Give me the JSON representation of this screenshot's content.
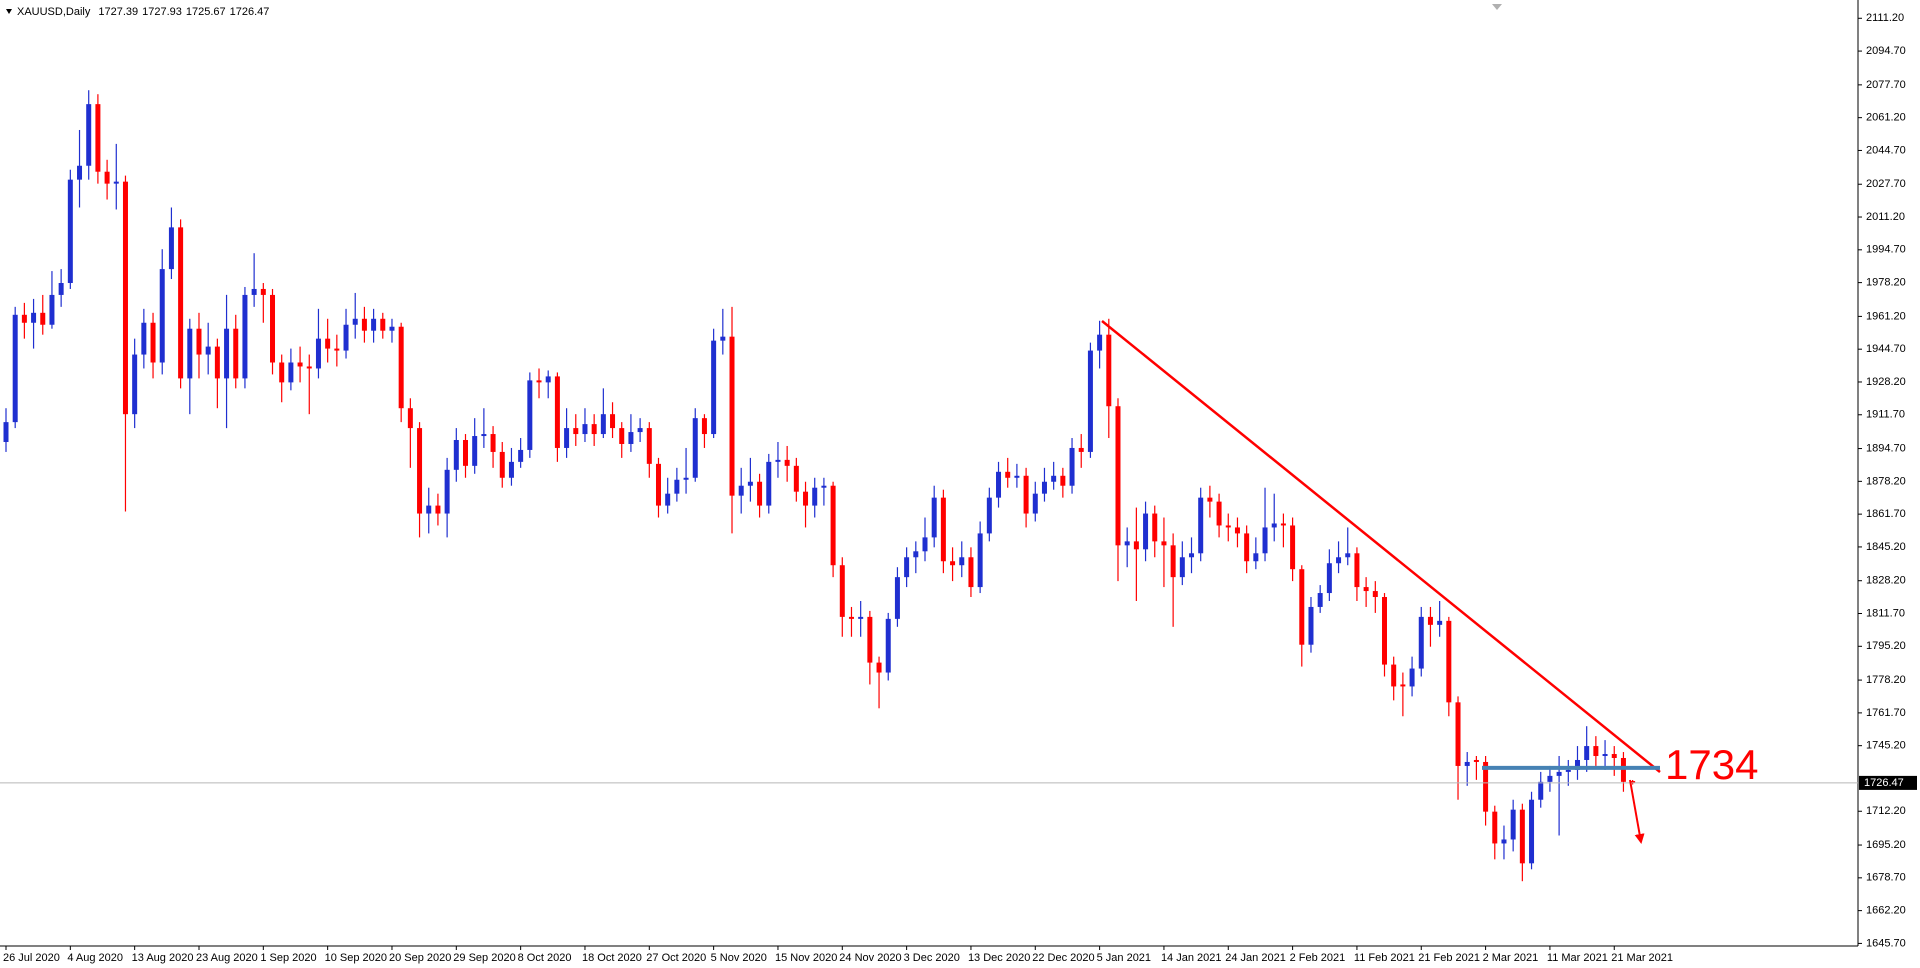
{
  "chart_data": {
    "type": "candlestick",
    "title": "XAUUSD,Daily",
    "up_color": "#1f2fd0",
    "down_color": "#ff0000",
    "ylim": [
      1644.4,
      2120.4
    ],
    "yticks": [
      {
        "value": 2111.2,
        "label": "2111.20"
      },
      {
        "value": 2094.7,
        "label": "2094.70"
      },
      {
        "value": 2077.7,
        "label": "2077.70"
      },
      {
        "value": 2061.2,
        "label": "2061.20"
      },
      {
        "value": 2044.7,
        "label": "2044.70"
      },
      {
        "value": 2027.7,
        "label": "2027.70"
      },
      {
        "value": 2011.2,
        "label": "2011.20"
      },
      {
        "value": 1994.7,
        "label": "1994.70"
      },
      {
        "value": 1978.2,
        "label": "1978.20"
      },
      {
        "value": 1961.2,
        "label": "1961.20"
      },
      {
        "value": 1944.7,
        "label": "1944.70"
      },
      {
        "value": 1928.2,
        "label": "1928.20"
      },
      {
        "value": 1911.7,
        "label": "1911.70"
      },
      {
        "value": 1894.7,
        "label": "1894.70"
      },
      {
        "value": 1878.2,
        "label": "1878.20"
      },
      {
        "value": 1861.7,
        "label": "1861.70"
      },
      {
        "value": 1845.2,
        "label": "1845.20"
      },
      {
        "value": 1828.2,
        "label": "1828.20"
      },
      {
        "value": 1811.7,
        "label": "1811.70"
      },
      {
        "value": 1795.2,
        "label": "1795.20"
      },
      {
        "value": 1778.2,
        "label": "1778.20"
      },
      {
        "value": 1761.7,
        "label": "1761.70"
      },
      {
        "value": 1745.2,
        "label": "1745.20"
      },
      {
        "value": 1712.2,
        "label": "1712.20"
      },
      {
        "value": 1695.2,
        "label": "1695.20"
      },
      {
        "value": 1678.7,
        "label": "1678.70"
      },
      {
        "value": 1662.2,
        "label": "1662.20"
      },
      {
        "value": 1645.7,
        "label": "1645.70"
      }
    ],
    "level": 1734,
    "level_color": "#4682b4",
    "categories": [
      "26 Jul 2020",
      null,
      null,
      null,
      null,
      null,
      null,
      "4 Aug 2020",
      null,
      null,
      null,
      null,
      null,
      null,
      "13 Aug 2020",
      null,
      null,
      null,
      null,
      null,
      null,
      "23 Aug 2020",
      null,
      null,
      null,
      null,
      null,
      null,
      "1 Sep 2020",
      null,
      null,
      null,
      null,
      null,
      null,
      "10 Sep 2020",
      null,
      null,
      null,
      null,
      null,
      null,
      "20 Sep 2020",
      null,
      null,
      null,
      null,
      null,
      null,
      "29 Sep 2020",
      null,
      null,
      null,
      null,
      null,
      null,
      "8 Oct 2020",
      null,
      null,
      null,
      null,
      null,
      null,
      "18 Oct 2020",
      null,
      null,
      null,
      null,
      null,
      null,
      "27 Oct 2020",
      null,
      null,
      null,
      null,
      null,
      null,
      "5 Nov 2020",
      null,
      null,
      null,
      null,
      null,
      null,
      "15 Nov 2020",
      null,
      null,
      null,
      null,
      null,
      null,
      "24 Nov 2020",
      null,
      null,
      null,
      null,
      null,
      null,
      "3 Dec 2020",
      null,
      null,
      null,
      null,
      null,
      null,
      "13 Dec 2020",
      null,
      null,
      null,
      null,
      null,
      null,
      "22 Dec 2020",
      null,
      null,
      null,
      null,
      null,
      null,
      "5 Jan 2021",
      null,
      null,
      null,
      null,
      null,
      null,
      "14 Jan 2021",
      null,
      null,
      null,
      null,
      null,
      null,
      "24 Jan 2021",
      null,
      null,
      null,
      null,
      null,
      null,
      "2 Feb 2021",
      null,
      null,
      null,
      null,
      null,
      null,
      "11 Feb 2021",
      null,
      null,
      null,
      null,
      null,
      null,
      "21 Feb 2021",
      null,
      null,
      null,
      null,
      null,
      null,
      "2 Mar 2021",
      null,
      null,
      null,
      null,
      null,
      null,
      "11 Mar 2021",
      null,
      null,
      null,
      null,
      null,
      null,
      "21 Mar 2021",
      null,
      null
    ],
    "open": [
      1898,
      1908,
      1962,
      1958,
      1963,
      1957,
      1972,
      1978,
      2030,
      2037,
      2068,
      2034,
      2028,
      2029,
      1912,
      1942,
      1958,
      1938,
      1985,
      2006,
      1930,
      1955,
      1942,
      1946,
      1930,
      1955,
      1930,
      1972,
      1975,
      1972,
      1938,
      1928,
      1938,
      1936,
      1935,
      1950,
      1945,
      1944,
      1957,
      1960,
      1954,
      1960,
      1954,
      1956,
      1915,
      1905,
      1862,
      1866,
      1862,
      1884,
      1899,
      1886,
      1901,
      1902,
      1893,
      1880,
      1888,
      1894,
      1929,
      1928,
      1931,
      1895,
      1905,
      1902,
      1907,
      1902,
      1912,
      1905,
      1897,
      1903,
      1905,
      1887,
      1866,
      1872,
      1879,
      1880,
      1910,
      1902,
      1949,
      1951,
      1871,
      1876,
      1878,
      1866,
      1888,
      1889,
      1886,
      1873,
      1866,
      1875,
      1876,
      1836,
      1810,
      1809,
      1810,
      1787,
      1782,
      1809,
      1830,
      1840,
      1843,
      1850,
      1870,
      1838,
      1836,
      1840,
      1825,
      1852,
      1870,
      1883,
      1880,
      1881,
      1862,
      1872,
      1878,
      1881,
      1876,
      1895,
      1893,
      1944,
      1952,
      1916,
      1846,
      1848,
      1844,
      1862,
      1848,
      1846,
      1830,
      1840,
      1842,
      1870,
      1868,
      1856,
      1855,
      1852,
      1838,
      1842,
      1855,
      1857,
      1856,
      1834,
      1796,
      1815,
      1822,
      1837,
      1840,
      1842,
      1825,
      1823,
      1820,
      1786,
      1776,
      1775,
      1784,
      1810,
      1806,
      1808,
      1767,
      1735,
      1738,
      1737,
      1712,
      1696,
      1698,
      1713,
      1686,
      1718,
      1727,
      1730,
      1732,
      1733,
      1738,
      1745,
      1740,
      1741,
      1739,
      1727.39
    ],
    "high": [
      1915,
      1966,
      1968,
      1970,
      1972,
      1984,
      1985,
      2035,
      2055,
      2075,
      2073,
      2040,
      2048,
      2032,
      1950,
      1965,
      1963,
      1995,
      2016,
      2010,
      1960,
      1963,
      1958,
      1950,
      1972,
      1962,
      1976,
      1993,
      1978,
      1975,
      1942,
      1945,
      1946,
      1942,
      1965,
      1960,
      1952,
      1965,
      1973,
      1966,
      1965,
      1963,
      1960,
      1958,
      1920,
      1908,
      1875,
      1872,
      1890,
      1905,
      1902,
      1910,
      1915,
      1906,
      1898,
      1895,
      1900,
      1933,
      1935,
      1934,
      1933,
      1915,
      1912,
      1915,
      1912,
      1925,
      1918,
      1908,
      1912,
      1910,
      1908,
      1890,
      1880,
      1885,
      1895,
      1915,
      1912,
      1955,
      1965,
      1966,
      1885,
      1890,
      1882,
      1892,
      1898,
      1896,
      1890,
      1878,
      1880,
      1880,
      1878,
      1840,
      1815,
      1818,
      1813,
      1790,
      1812,
      1835,
      1845,
      1848,
      1860,
      1876,
      1874,
      1845,
      1848,
      1845,
      1858,
      1875,
      1888,
      1890,
      1887,
      1885,
      1878,
      1885,
      1888,
      1885,
      1900,
      1902,
      1948,
      1959,
      1960,
      1920,
      1855,
      1865,
      1868,
      1866,
      1860,
      1852,
      1848,
      1850,
      1875,
      1876,
      1872,
      1862,
      1860,
      1856,
      1850,
      1875,
      1872,
      1862,
      1860,
      1836,
      1820,
      1826,
      1844,
      1848,
      1855,
      1845,
      1830,
      1828,
      1822,
      1790,
      1782,
      1790,
      1815,
      1815,
      1818,
      1810,
      1770,
      1742,
      1740,
      1740,
      1715,
      1705,
      1718,
      1716,
      1722,
      1732,
      1735,
      1740,
      1738,
      1745,
      1755,
      1750,
      1748,
      1745,
      1742,
      1727.93
    ],
    "low": [
      1893,
      1905,
      1950,
      1945,
      1952,
      1955,
      1966,
      1975,
      2016,
      2030,
      2028,
      2020,
      2015,
      1863,
      1905,
      1935,
      1930,
      1932,
      1980,
      1925,
      1912,
      1930,
      1932,
      1915,
      1905,
      1925,
      1925,
      1966,
      1958,
      1932,
      1918,
      1924,
      1928,
      1912,
      1930,
      1938,
      1936,
      1940,
      1950,
      1948,
      1948,
      1950,
      1948,
      1908,
      1885,
      1850,
      1852,
      1856,
      1850,
      1878,
      1880,
      1882,
      1895,
      1885,
      1875,
      1876,
      1885,
      1890,
      1920,
      1920,
      1888,
      1890,
      1896,
      1898,
      1896,
      1900,
      1900,
      1890,
      1893,
      1898,
      1880,
      1860,
      1862,
      1868,
      1872,
      1878,
      1895,
      1900,
      1942,
      1852,
      1862,
      1868,
      1860,
      1862,
      1880,
      1878,
      1868,
      1855,
      1860,
      1866,
      1830,
      1800,
      1800,
      1800,
      1776,
      1764,
      1778,
      1805,
      1825,
      1832,
      1838,
      1845,
      1832,
      1828,
      1830,
      1820,
      1822,
      1848,
      1865,
      1875,
      1875,
      1855,
      1858,
      1868,
      1874,
      1870,
      1872,
      1885,
      1890,
      1935,
      1900,
      1828,
      1835,
      1818,
      1838,
      1840,
      1825,
      1805,
      1826,
      1832,
      1838,
      1860,
      1850,
      1848,
      1845,
      1832,
      1834,
      1838,
      1848,
      1845,
      1828,
      1785,
      1792,
      1812,
      1818,
      1832,
      1836,
      1818,
      1815,
      1812,
      1780,
      1768,
      1760,
      1770,
      1780,
      1795,
      1800,
      1760,
      1718,
      1725,
      1728,
      1705,
      1688,
      1688,
      1692,
      1677,
      1683,
      1714,
      1722,
      1700,
      1725,
      1728,
      1732,
      1735,
      1733,
      1730,
      1722,
      1725.67
    ],
    "close": [
      1908,
      1962,
      1958,
      1963,
      1957,
      1972,
      1978,
      2030,
      2037,
      2068,
      2034,
      2028,
      2029,
      1912,
      1942,
      1958,
      1938,
      1985,
      2006,
      1930,
      1955,
      1942,
      1946,
      1930,
      1955,
      1930,
      1972,
      1975,
      1972,
      1938,
      1928,
      1938,
      1936,
      1935,
      1950,
      1945,
      1944,
      1957,
      1960,
      1954,
      1960,
      1954,
      1956,
      1915,
      1905,
      1862,
      1866,
      1862,
      1884,
      1899,
      1886,
      1901,
      1902,
      1893,
      1880,
      1888,
      1894,
      1929,
      1928,
      1931,
      1895,
      1905,
      1902,
      1907,
      1902,
      1912,
      1905,
      1897,
      1903,
      1905,
      1887,
      1866,
      1872,
      1879,
      1880,
      1910,
      1902,
      1949,
      1951,
      1871,
      1876,
      1878,
      1866,
      1888,
      1889,
      1886,
      1873,
      1866,
      1875,
      1876,
      1836,
      1810,
      1809,
      1810,
      1787,
      1782,
      1809,
      1830,
      1840,
      1843,
      1850,
      1870,
      1838,
      1836,
      1840,
      1825,
      1852,
      1870,
      1883,
      1880,
      1881,
      1862,
      1872,
      1878,
      1881,
      1876,
      1895,
      1893,
      1944,
      1952,
      1916,
      1846,
      1848,
      1844,
      1862,
      1848,
      1846,
      1830,
      1840,
      1842,
      1870,
      1868,
      1856,
      1855,
      1852,
      1838,
      1842,
      1855,
      1857,
      1856,
      1834,
      1796,
      1815,
      1822,
      1837,
      1840,
      1842,
      1825,
      1823,
      1820,
      1786,
      1775,
      1775,
      1784,
      1810,
      1806,
      1808,
      1767,
      1735,
      1737,
      1737,
      1712,
      1696,
      1698,
      1713,
      1686,
      1718,
      1727,
      1730,
      1732,
      1733,
      1738,
      1745,
      1740,
      1741,
      1739,
      1727,
      1726.47
    ]
  }
}
